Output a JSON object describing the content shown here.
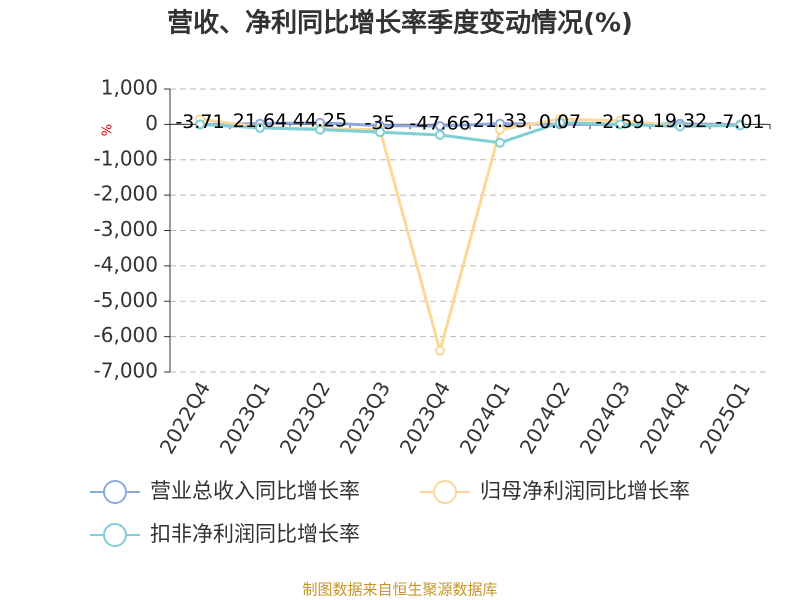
{
  "chart_data": {
    "type": "line",
    "title": "营收、净利同比增长率季度变动情况(%)",
    "y_label": "%",
    "source": "制图数据来自恒生聚源数据库",
    "categories": [
      "2022Q4",
      "2023Q1",
      "2023Q2",
      "2023Q3",
      "2023Q4",
      "2024Q1",
      "2024Q2",
      "2024Q3",
      "2024Q4",
      "2025Q1"
    ],
    "series": [
      {
        "name": "营业总收入同比增长率",
        "color": "#8fa9dc",
        "values": [
          -3.71,
          21.64,
          44.25,
          -35,
          -47.66,
          21.33,
          0.07,
          -2.59,
          19.32,
          -7.01
        ]
      },
      {
        "name": "归母净利润同比增长率",
        "color": "#fcd899",
        "values": [
          150,
          -80,
          -120,
          -150,
          -6400,
          -150,
          150,
          100,
          -50,
          -20
        ]
      },
      {
        "name": "扣非净利润同比增长率",
        "color": "#7fcfd6",
        "values": [
          0,
          -100,
          -150,
          -220,
          -300,
          -520,
          50,
          0,
          -60,
          -30
        ]
      }
    ],
    "ylim": [
      -7000,
      1000
    ],
    "yticks": [
      {
        "value": 1000,
        "label": "1,000"
      },
      0,
      {
        "value": -1000,
        "label": "-1,000"
      },
      {
        "value": -2000,
        "label": "-2,000"
      },
      {
        "value": -3000,
        "label": "-3,000"
      },
      {
        "value": -4000,
        "label": "-4,000"
      },
      {
        "value": -5000,
        "label": "-5,000"
      },
      {
        "value": -6000,
        "label": "-6,000"
      },
      {
        "value": -7000,
        "label": "-7,000"
      }
    ],
    "grid": true,
    "value_labels_series": 0
  }
}
